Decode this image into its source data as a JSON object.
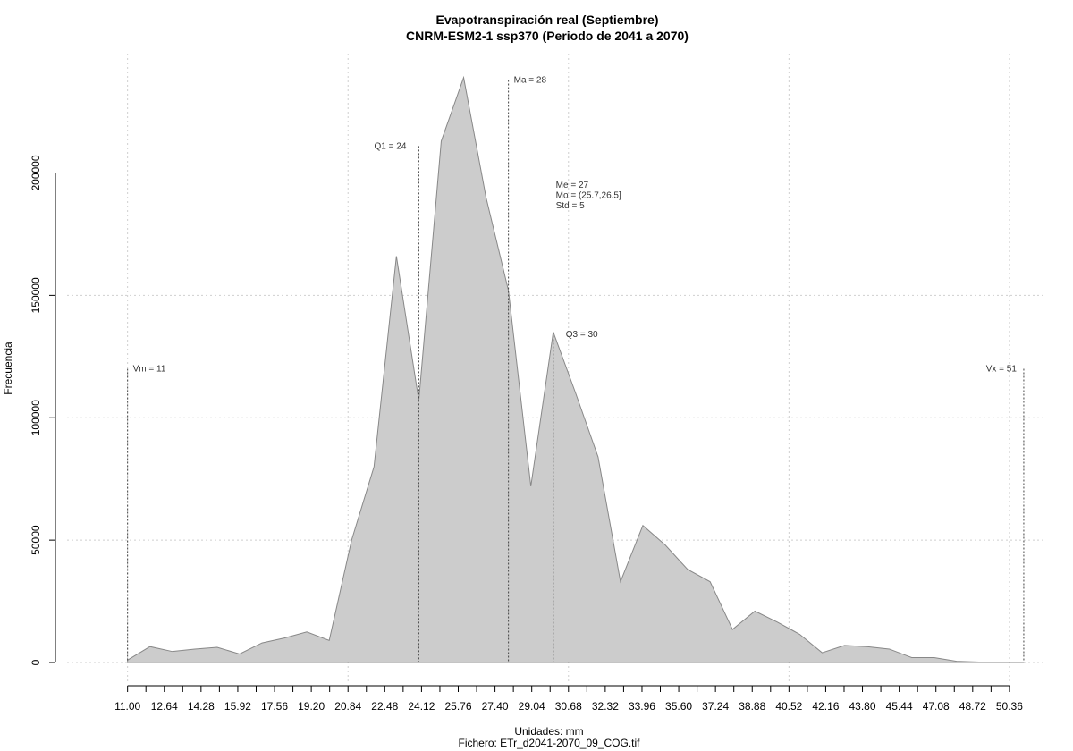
{
  "chart_data": {
    "type": "area",
    "title": "Evapotranspiración real (Septiembre)",
    "subtitle": "CNRM-ESM2-1 ssp370 (Periodo de 2041 a 2070)",
    "xlabel": "Unidades: mm",
    "caption": "Fichero: ETr_d2041-2070_09_COG.tif",
    "ylabel": "Frecuencia",
    "xlim": [
      8.3,
      52.0
    ],
    "ylim": [
      0,
      240000
    ],
    "x_ticks": [
      11.0,
      11.82,
      12.64,
      13.46,
      14.28,
      15.1,
      15.92,
      16.74,
      17.56,
      18.38,
      19.2,
      20.02,
      20.84,
      21.66,
      22.48,
      23.3,
      24.12,
      24.94,
      25.76,
      26.58,
      27.4,
      28.22,
      29.04,
      29.86,
      30.68,
      31.5,
      32.32,
      33.14,
      33.96,
      34.78,
      35.6,
      36.42,
      37.24,
      38.06,
      38.88,
      39.7,
      40.52,
      41.34,
      42.16,
      42.98,
      43.8,
      44.62,
      45.44,
      46.26,
      47.08,
      47.9,
      48.72,
      49.54,
      50.36
    ],
    "x_tick_labels": [
      "11.00",
      "",
      "12.64",
      "",
      "14.28",
      "",
      "15.92",
      "",
      "17.56",
      "",
      "19.20",
      "",
      "20.84",
      "",
      "22.48",
      "",
      "24.12",
      "",
      "25.76",
      "",
      "27.40",
      "",
      "29.04",
      "",
      "30.68",
      "",
      "32.32",
      "",
      "33.96",
      "",
      "35.60",
      "",
      "37.24",
      "",
      "38.88",
      "",
      "40.52",
      "",
      "42.16",
      "",
      "43.80",
      "",
      "45.44",
      "",
      "47.08",
      "",
      "48.72",
      "",
      "50.36"
    ],
    "y_ticks": [
      0,
      50000,
      100000,
      150000,
      200000
    ],
    "y_tick_labels": [
      "0",
      "50000",
      "100000",
      "150000",
      "200000"
    ],
    "x_grid": [
      11.0,
      20.84,
      30.68,
      40.52,
      50.36
    ],
    "series": [
      {
        "x": [
          11.0,
          12.0,
          13.0,
          14.0,
          15.0,
          16.0,
          17.0,
          18.0,
          19.0,
          20.0,
          21.0,
          22.0,
          23.0,
          24.0,
          25.0,
          26.0,
          27.0,
          28.0,
          29.0,
          30.0,
          31.0,
          32.0,
          33.0,
          34.0,
          35.0,
          36.0,
          37.0,
          38.0,
          39.0,
          40.0,
          41.0,
          42.0,
          43.0,
          44.0,
          45.0,
          46.0,
          47.0,
          48.0,
          49.0,
          50.0,
          51.0
        ],
        "values": [
          1000,
          6500,
          4500,
          5500,
          6200,
          3500,
          8000,
          10000,
          12500,
          9000,
          50000,
          80000,
          166000,
          107000,
          213000,
          239000,
          190000,
          152000,
          72000,
          135000,
          110000,
          84000,
          33000,
          56000,
          48000,
          38000,
          33000,
          13500,
          21000,
          16500,
          11500,
          4000,
          7000,
          6500,
          5500,
          2000,
          2000,
          500,
          200,
          100,
          100
        ],
        "color": "#cccccc",
        "edge_color": "#888888"
      }
    ],
    "annotations": [
      {
        "label": "Vm = 11",
        "x": 11.0,
        "y": 120000,
        "line_top": 120000,
        "anchor": "start",
        "dx": 6
      },
      {
        "label": "Q1 = 24",
        "x": 24.0,
        "y": 211000,
        "line_top": 211000,
        "anchor": "end",
        "dx": -14
      },
      {
        "label": "Ma = 28",
        "x": 28.0,
        "y": 238000,
        "line_top": 238000,
        "anchor": "start",
        "dx": 6
      },
      {
        "label": "Q3 = 30",
        "x": 30.0,
        "y": 134000,
        "line_top": 135000,
        "anchor": "start",
        "dx": 14
      },
      {
        "label": "Vx = 51",
        "x": 51.0,
        "y": 120000,
        "line_top": 120000,
        "anchor": "end",
        "dx": -8
      }
    ],
    "stats_block": [
      "Me = 27",
      "Mo = (25.7,26.5]",
      "Std = 5"
    ],
    "stats_anchor": {
      "x": 29.0,
      "y": 194000
    },
    "grid": true
  }
}
